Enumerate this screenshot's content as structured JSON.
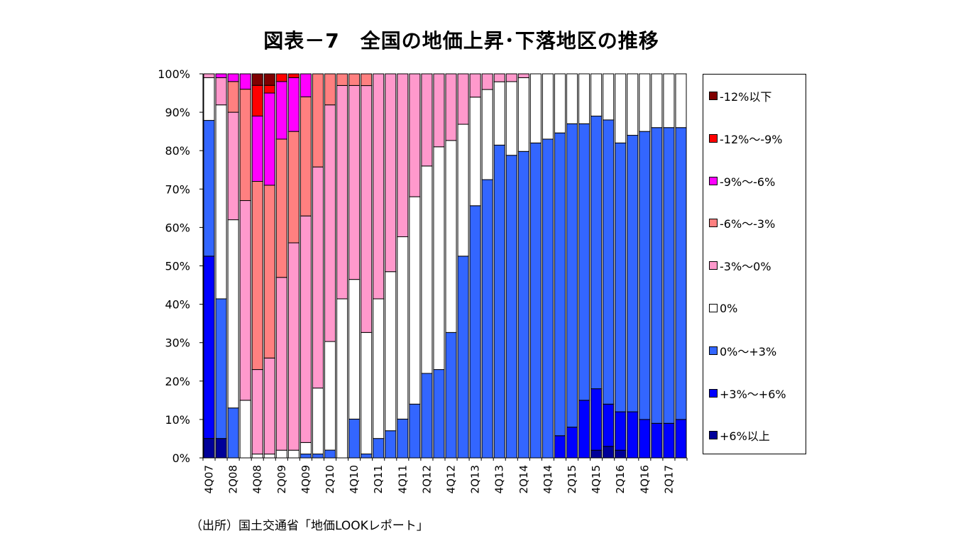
{
  "chart_data": {
    "type": "bar",
    "stacked": true,
    "title": "図表－7　全国の地価上昇･下落地区の推移",
    "source": "（出所）国土交通省「地価LOOKレポート」",
    "y_ticks": [
      "0%",
      "10%",
      "20%",
      "30%",
      "40%",
      "50%",
      "60%",
      "70%",
      "80%",
      "90%",
      "100%"
    ],
    "ylim": [
      0,
      100
    ],
    "x_tick_labels": [
      "4Q07",
      "2Q08",
      "4Q08",
      "2Q09",
      "4Q09",
      "2Q10",
      "4Q10",
      "2Q11",
      "4Q11",
      "2Q12",
      "4Q12",
      "2Q13",
      "4Q13",
      "2Q14",
      "4Q14",
      "2Q15",
      "4Q15",
      "2Q16",
      "4Q16",
      "2Q17"
    ],
    "legend_position": "right",
    "categories": [
      "4Q07",
      "1Q08",
      "2Q08",
      "3Q08",
      "4Q08",
      "1Q09",
      "2Q09",
      "3Q09",
      "4Q09",
      "1Q10",
      "2Q10",
      "3Q10",
      "4Q10",
      "1Q11",
      "2Q11",
      "3Q11",
      "4Q11",
      "1Q12",
      "2Q12",
      "3Q12",
      "4Q12",
      "1Q13",
      "2Q13",
      "3Q13",
      "4Q13",
      "1Q14",
      "2Q14",
      "3Q14",
      "4Q14",
      "1Q15",
      "2Q15",
      "3Q15",
      "4Q15",
      "1Q16",
      "2Q16",
      "3Q16",
      "4Q16",
      "1Q17",
      "2Q17",
      "3Q17"
    ],
    "series": [
      {
        "name": "+6%以上",
        "color": "#000099",
        "values": [
          5,
          5,
          0,
          0,
          0,
          0,
          0,
          0,
          0,
          0,
          0,
          0,
          0,
          0,
          0,
          0,
          0,
          0,
          0,
          0,
          0,
          0,
          0,
          0,
          0,
          0,
          0,
          0,
          0,
          0,
          0,
          0,
          2,
          3,
          2,
          0,
          0,
          0,
          0,
          0
        ]
      },
      {
        "name": "+3%～+6%",
        "color": "#0000ff",
        "values": [
          47,
          0,
          0,
          0,
          0,
          0,
          0,
          0,
          0,
          0,
          0,
          0,
          0,
          0,
          0,
          0,
          0,
          0,
          0,
          0,
          0,
          0,
          0,
          0,
          0,
          0,
          0,
          0,
          0,
          6,
          8,
          15,
          16,
          11,
          10,
          12,
          10,
          9,
          9,
          10
        ]
      },
      {
        "name": "0%～+3%",
        "color": "#3366ff",
        "values": [
          35,
          36,
          13,
          0,
          0,
          0,
          0,
          0,
          1,
          1,
          2,
          0,
          10,
          1,
          5,
          7,
          10,
          14,
          22,
          23,
          32,
          52,
          65,
          71,
          79,
          78,
          79,
          82,
          83,
          82,
          79,
          72,
          71,
          74,
          70,
          72,
          75,
          77,
          77,
          76
        ]
      },
      {
        "name": "0%",
        "color": "#ffffff",
        "values": [
          11,
          50,
          49,
          15,
          1,
          1,
          2,
          2,
          3,
          17,
          28,
          41,
          36,
          31,
          36,
          41,
          47,
          54,
          54,
          58,
          49,
          34,
          28,
          23,
          16,
          19,
          19,
          18,
          17,
          16,
          13,
          13,
          11,
          12,
          18,
          16,
          15,
          14,
          14,
          14
        ]
      },
      {
        "name": "-3%～0%",
        "color": "#ff99cc",
        "values": [
          1,
          7,
          28,
          52,
          22,
          25,
          45,
          54,
          59,
          57,
          61,
          55,
          50,
          63,
          58,
          51,
          42,
          32,
          24,
          19,
          17,
          13,
          6,
          4,
          2,
          2,
          1,
          0,
          0,
          0,
          0,
          0,
          0,
          0,
          0,
          0,
          0,
          0,
          0,
          0
        ]
      },
      {
        "name": "-6%～-3%",
        "color": "#ff8080",
        "values": [
          0,
          0,
          8,
          29,
          49,
          45,
          36,
          29,
          31,
          24,
          8,
          3,
          3,
          3,
          0,
          0,
          0,
          0,
          0,
          0,
          0,
          0,
          0,
          0,
          0,
          0,
          0,
          0,
          0,
          0,
          0,
          0,
          0,
          0,
          0,
          0,
          0,
          0,
          0,
          0
        ]
      },
      {
        "name": "-9%～-6%",
        "color": "#ff00ff",
        "values": [
          0,
          1,
          2,
          4,
          17,
          24,
          15,
          14,
          6,
          0,
          0,
          0,
          0,
          0,
          0,
          0,
          0,
          0,
          0,
          0,
          0,
          0,
          0,
          0,
          0,
          0,
          0,
          0,
          0,
          0,
          0,
          0,
          0,
          0,
          0,
          0,
          0,
          0,
          0,
          0
        ]
      },
      {
        "name": "-12%～-9%",
        "color": "#ff0000",
        "values": [
          0,
          0,
          0,
          0,
          8,
          2,
          2,
          1,
          0,
          0,
          0,
          0,
          0,
          0,
          0,
          0,
          0,
          0,
          0,
          0,
          0,
          0,
          0,
          0,
          0,
          0,
          0,
          0,
          0,
          0,
          0,
          0,
          0,
          0,
          0,
          0,
          0,
          0,
          0,
          0
        ]
      },
      {
        "name": "-12%以下",
        "color": "#800000",
        "values": [
          0,
          0,
          0,
          0,
          3,
          3,
          0,
          0,
          0,
          0,
          0,
          0,
          0,
          0,
          0,
          0,
          0,
          0,
          0,
          0,
          0,
          0,
          0,
          0,
          0,
          0,
          0,
          0,
          0,
          0,
          0,
          0,
          0,
          0,
          0,
          0,
          0,
          0,
          0,
          0
        ]
      }
    ],
    "legend_order": [
      "-12%以下",
      "-12%～-9%",
      "-9%～-6%",
      "-6%～-3%",
      "-3%～0%",
      "0%",
      "0%～+3%",
      "+3%～+6%",
      "+6%以上"
    ]
  }
}
